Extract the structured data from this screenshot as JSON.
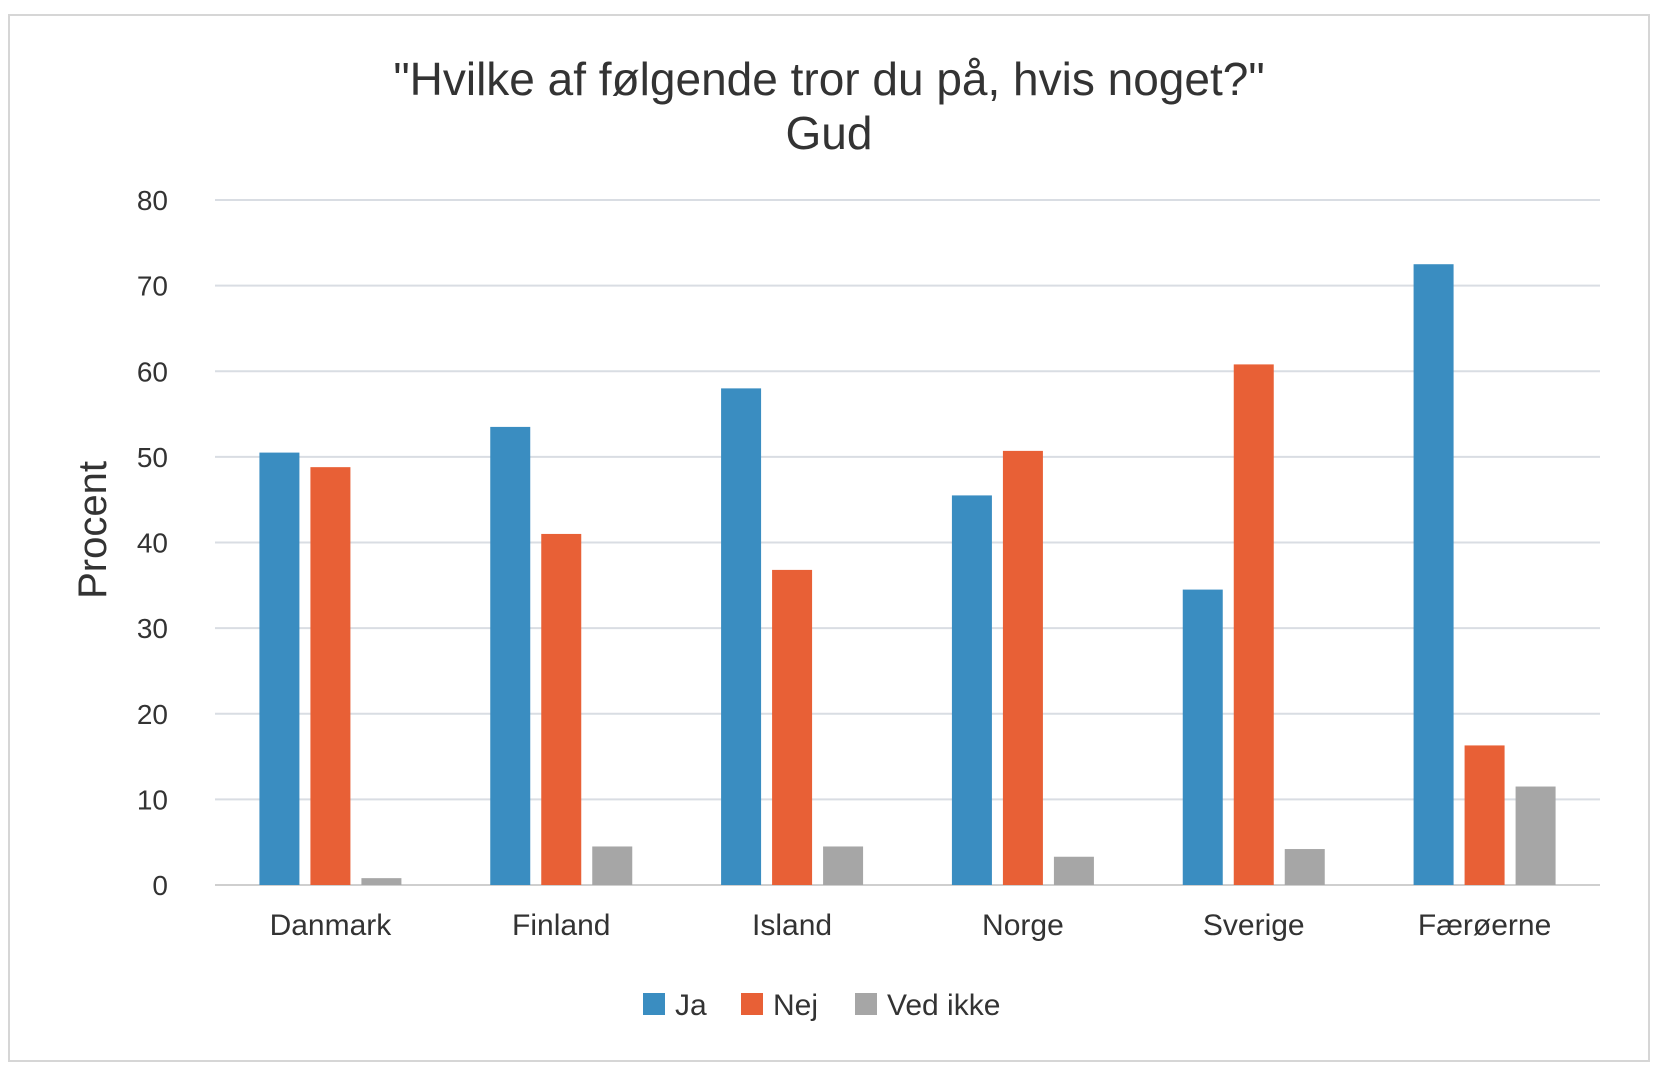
{
  "chart_data": {
    "type": "bar",
    "title": "\"Hvilke af følgende tror du på, hvis noget?\"",
    "subtitle": "Gud",
    "xlabel": "",
    "ylabel": "Procent",
    "categories": [
      "Danmark",
      "Finland",
      "Island",
      "Norge",
      "Sverige",
      "Færøerne"
    ],
    "ylim": [
      0,
      80
    ],
    "yticks": [
      0,
      10,
      20,
      30,
      40,
      50,
      60,
      70,
      80
    ],
    "grid": true,
    "legend_position": "bottom",
    "series": [
      {
        "name": "Ja",
        "color": "#3a8dc1",
        "values": [
          50.5,
          53.5,
          58,
          45.5,
          34.5,
          72.5
        ]
      },
      {
        "name": "Nej",
        "color": "#e86036",
        "values": [
          48.8,
          41,
          36.8,
          50.7,
          60.8,
          16.3
        ]
      },
      {
        "name": "Ved ikke",
        "color": "#a6a6a6",
        "values": [
          0.8,
          4.5,
          4.5,
          3.3,
          4.2,
          11.5
        ]
      }
    ]
  }
}
